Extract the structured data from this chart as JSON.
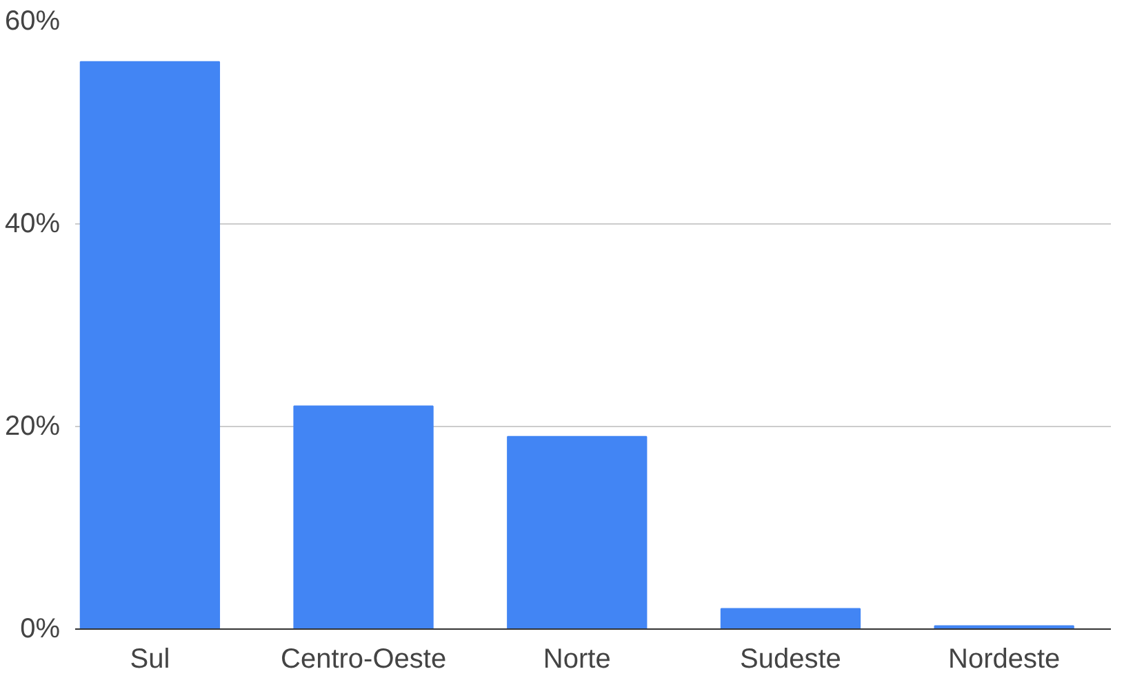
{
  "chart_data": {
    "type": "bar",
    "categories": [
      "Sul",
      "Centro-Oeste",
      "Norte",
      "Sudeste",
      "Nordeste"
    ],
    "values": [
      56,
      22,
      19,
      2,
      0.3
    ],
    "color": "#4285f4",
    "ylim": [
      0,
      60
    ],
    "yticks": [
      {
        "value": 0,
        "label": "0%"
      },
      {
        "value": 20,
        "label": "20%"
      },
      {
        "value": 40,
        "label": "40%"
      },
      {
        "value": 60,
        "label": "60%"
      }
    ],
    "grid": "y"
  }
}
